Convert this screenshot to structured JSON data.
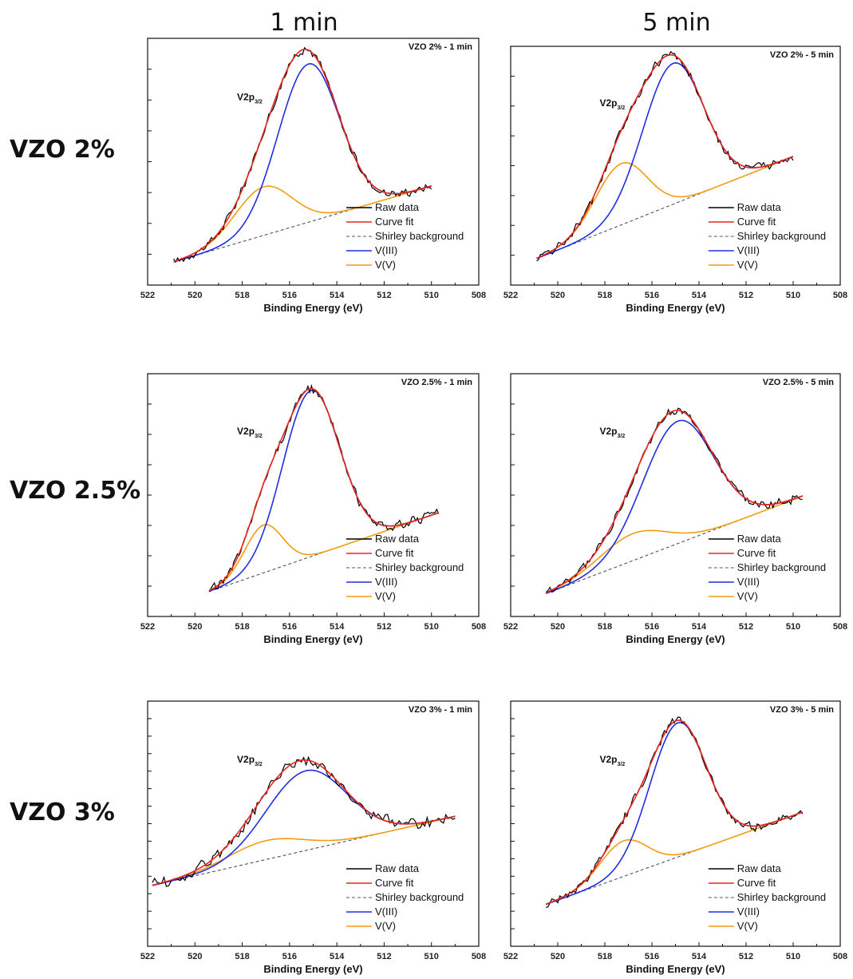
{
  "column_headers": [
    "1 min",
    "5 min"
  ],
  "row_labels": [
    "VZO 2%",
    "VZO 2.5%",
    "VZO 3%"
  ],
  "colors": {
    "raw": "#000000",
    "fit": "#e8261e",
    "background": "#555555",
    "v3": "#1f2fe0",
    "v5": "#f39c12"
  },
  "legend": [
    "Raw data",
    "Curve fit",
    "Shirley background",
    "V(III)",
    "V(V)"
  ],
  "chart_data": [
    {
      "type": "line",
      "title": "VZO 2% - 1 min",
      "annotation": {
        "main": "V2p",
        "sub": "3/2"
      },
      "xlabel": "Binding Energy (eV)",
      "ylabel": "",
      "xlim": [
        522,
        508
      ],
      "x_ticks": [
        522,
        520,
        518,
        516,
        514,
        512,
        510,
        508
      ],
      "ylim": [
        -0.05,
        1.12
      ],
      "x_range": [
        520.9,
        510.0
      ],
      "background": [
        0.06,
        0.42
      ],
      "v3": {
        "center": 515.2,
        "amp": 0.75,
        "width": 1.3
      },
      "v5": {
        "center": 517.1,
        "amp": 0.23,
        "width": 1.2
      },
      "noise": 0.03,
      "y_ticks_count": 8,
      "legend_position": "bottom-right"
    },
    {
      "type": "line",
      "title": "VZO 2% - 5 min",
      "annotation": {
        "main": "V2p",
        "sub": "3/2"
      },
      "xlabel": "Binding Energy (eV)",
      "ylabel": "",
      "xlim": [
        522,
        508
      ],
      "x_ticks": [
        522,
        520,
        518,
        516,
        514,
        512,
        510,
        508
      ],
      "ylim": [
        -0.05,
        1.12
      ],
      "x_range": [
        520.9,
        510.0
      ],
      "background": [
        0.08,
        0.58
      ],
      "v3": {
        "center": 515.1,
        "amp": 0.69,
        "width": 1.3
      },
      "v5": {
        "center": 517.3,
        "amp": 0.3,
        "width": 1.1
      },
      "noise": 0.03,
      "y_ticks_count": 8,
      "legend_position": "bottom-right"
    },
    {
      "type": "line",
      "title": "VZO 2.5% - 1 min",
      "annotation": {
        "main": "V2p",
        "sub": "3/2"
      },
      "xlabel": "Binding Energy (eV)",
      "ylabel": "",
      "xlim": [
        522,
        508
      ],
      "x_ticks": [
        522,
        520,
        518,
        516,
        514,
        512,
        510,
        508
      ],
      "ylim": [
        -0.05,
        1.12
      ],
      "x_range": [
        519.4,
        509.7
      ],
      "background": [
        0.07,
        0.45
      ],
      "v3": {
        "center": 515.1,
        "amp": 0.8,
        "width": 1.2
      },
      "v5": {
        "center": 517.1,
        "amp": 0.23,
        "width": 0.8
      },
      "noise": 0.03,
      "y_ticks_count": 8,
      "legend_position": "bottom-right"
    },
    {
      "type": "line",
      "title": "VZO 2.5% - 5 min",
      "annotation": {
        "main": "V2p",
        "sub": "3/2"
      },
      "xlabel": "Binding Energy (eV)",
      "ylabel": "",
      "xlim": [
        522,
        508
      ],
      "x_ticks": [
        522,
        520,
        518,
        516,
        514,
        512,
        510,
        508
      ],
      "ylim": [
        -0.05,
        1.12
      ],
      "x_range": [
        520.5,
        509.6
      ],
      "background": [
        0.06,
        0.53
      ],
      "v3": {
        "center": 514.9,
        "amp": 0.59,
        "width": 1.5
      },
      "v5": {
        "center": 516.8,
        "amp": 0.13,
        "width": 1.4
      },
      "noise": 0.03,
      "y_ticks_count": 8,
      "legend_position": "bottom-right"
    },
    {
      "type": "line",
      "title": "VZO 3% - 1 min",
      "annotation": {
        "main": "V2p",
        "sub": "3/2"
      },
      "xlabel": "Binding Energy (eV)",
      "ylabel": "",
      "xlim": [
        522,
        508
      ],
      "x_ticks": [
        522,
        520,
        518,
        516,
        514,
        512,
        510,
        508
      ],
      "ylim": [
        -0.05,
        1.12
      ],
      "x_range": [
        521.8,
        509.0
      ],
      "background": [
        0.24,
        0.57
      ],
      "v3": {
        "center": 515.3,
        "amp": 0.38,
        "width": 1.7
      },
      "v5": {
        "center": 517.0,
        "amp": 0.09,
        "width": 1.6
      },
      "noise": 0.04,
      "y_ticks_count": 14,
      "legend_position": "bottom-right"
    },
    {
      "type": "line",
      "title": "VZO 3% - 5 min",
      "annotation": {
        "main": "V2p",
        "sub": "3/2"
      },
      "xlabel": "Binding Energy (eV)",
      "ylabel": "",
      "xlim": [
        522,
        508
      ],
      "x_ticks": [
        522,
        520,
        518,
        516,
        514,
        512,
        510,
        508
      ],
      "ylim": [
        -0.05,
        1.12
      ],
      "x_range": [
        520.5,
        509.6
      ],
      "background": [
        0.15,
        0.59
      ],
      "v3": {
        "center": 514.9,
        "amp": 0.64,
        "width": 1.2
      },
      "v5": {
        "center": 517.2,
        "amp": 0.17,
        "width": 1.0
      },
      "noise": 0.03,
      "y_ticks_count": 14,
      "legend_position": "bottom-right"
    }
  ]
}
